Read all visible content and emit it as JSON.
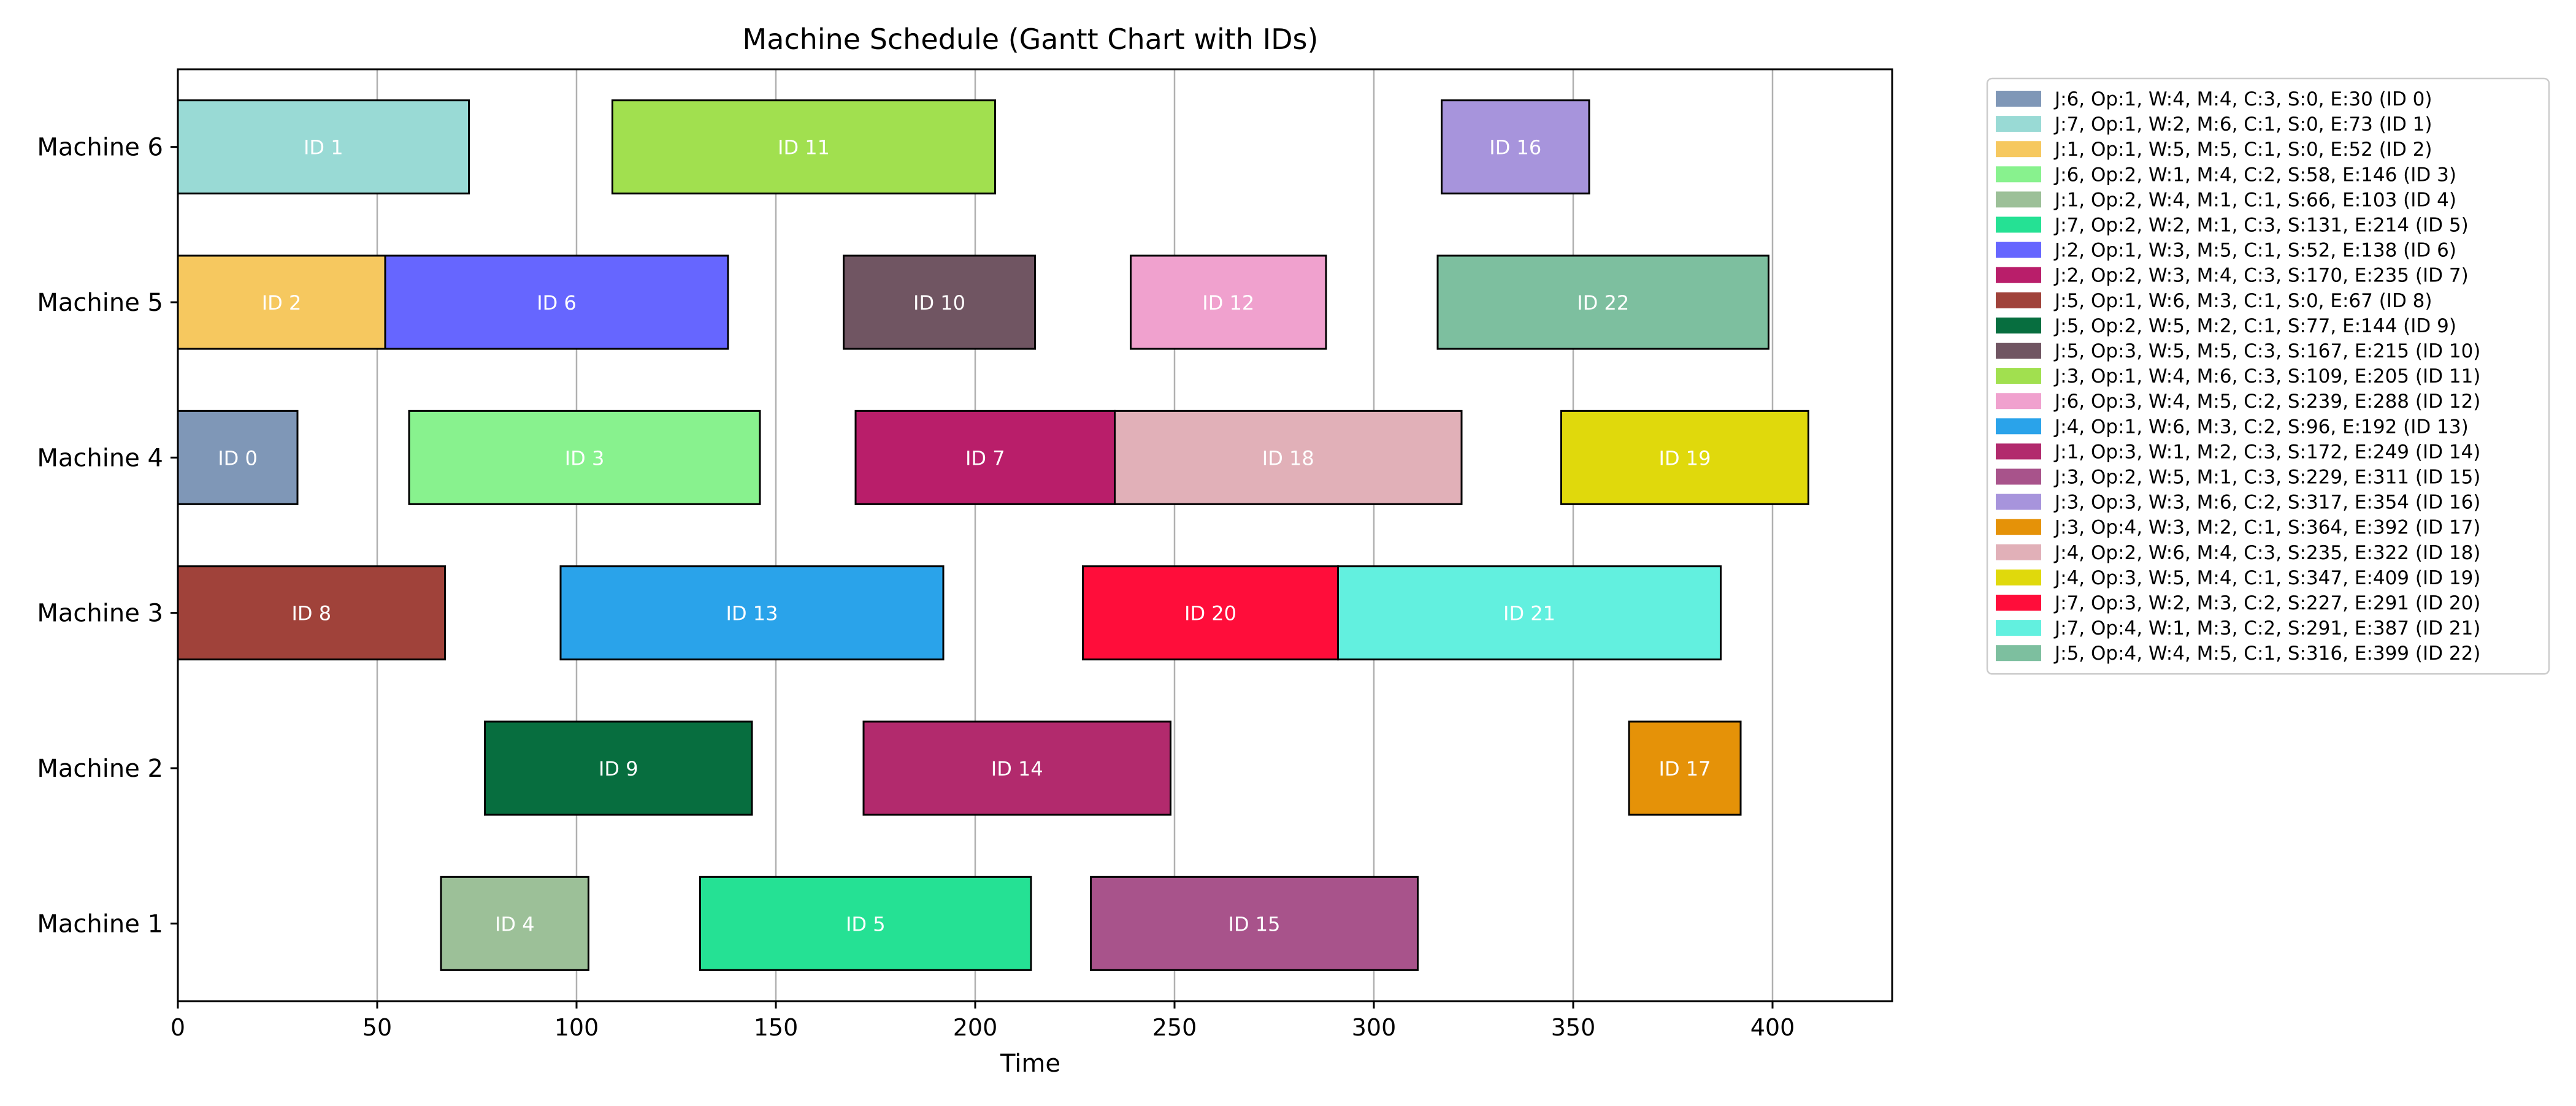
{
  "chart_data": {
    "type": "gantt",
    "title": "Machine Schedule (Gantt Chart with IDs)",
    "xlabel": "Time",
    "ylabel": "",
    "xlim": [
      0,
      430
    ],
    "xticks": [
      0,
      50,
      100,
      150,
      200,
      250,
      300,
      350,
      400
    ],
    "machines": [
      "Machine 1",
      "Machine 2",
      "Machine 3",
      "Machine 4",
      "Machine 5",
      "Machine 6"
    ],
    "grid": "vertical",
    "legend_position": "outside right",
    "tasks": [
      {
        "id": 0,
        "job": 6,
        "op": 1,
        "worker": 4,
        "machine": 4,
        "c": 3,
        "start": 0,
        "end": 30,
        "color": "#7f97b7",
        "bar_label": "ID 0",
        "legend_label": "J:6, Op:1, W:4, M:4, C:3, S:0, E:30 (ID 0)"
      },
      {
        "id": 1,
        "job": 7,
        "op": 1,
        "worker": 2,
        "machine": 6,
        "c": 1,
        "start": 0,
        "end": 73,
        "color": "#99dad5",
        "bar_label": "ID 1",
        "legend_label": "J:7, Op:1, W:2, M:6, C:1, S:0, E:73 (ID 1)"
      },
      {
        "id": 2,
        "job": 1,
        "op": 1,
        "worker": 5,
        "machine": 5,
        "c": 1,
        "start": 0,
        "end": 52,
        "color": "#f6c85f",
        "bar_label": "ID 2",
        "legend_label": "J:1, Op:1, W:5, M:5, C:1, S:0, E:52 (ID 2)"
      },
      {
        "id": 3,
        "job": 6,
        "op": 2,
        "worker": 1,
        "machine": 4,
        "c": 2,
        "start": 58,
        "end": 146,
        "color": "#88f28e",
        "bar_label": "ID 3",
        "legend_label": "J:6, Op:2, W:1, M:4, C:2, S:58, E:146 (ID 3)"
      },
      {
        "id": 4,
        "job": 1,
        "op": 2,
        "worker": 4,
        "machine": 1,
        "c": 1,
        "start": 66,
        "end": 103,
        "color": "#9cc098",
        "bar_label": "ID 4",
        "legend_label": "J:1, Op:2, W:4, M:1, C:1, S:66, E:103 (ID 4)"
      },
      {
        "id": 5,
        "job": 7,
        "op": 2,
        "worker": 2,
        "machine": 1,
        "c": 3,
        "start": 131,
        "end": 214,
        "color": "#25e194",
        "bar_label": "ID 5",
        "legend_label": "J:7, Op:2, W:2, M:1, C:3, S:131, E:214 (ID 5)"
      },
      {
        "id": 6,
        "job": 2,
        "op": 1,
        "worker": 3,
        "machine": 5,
        "c": 1,
        "start": 52,
        "end": 138,
        "color": "#6666ff",
        "bar_label": "ID 6",
        "legend_label": "J:2, Op:1, W:3, M:5, C:1, S:52, E:138 (ID 6)"
      },
      {
        "id": 7,
        "job": 2,
        "op": 2,
        "worker": 3,
        "machine": 4,
        "c": 3,
        "start": 170,
        "end": 235,
        "color": "#b91e6a",
        "bar_label": "ID 7",
        "legend_label": "J:2, Op:2, W:3, M:4, C:3, S:170, E:235 (ID 7)"
      },
      {
        "id": 8,
        "job": 5,
        "op": 1,
        "worker": 6,
        "machine": 3,
        "c": 1,
        "start": 0,
        "end": 67,
        "color": "#a0423a",
        "bar_label": "ID 8",
        "legend_label": "J:5, Op:1, W:6, M:3, C:1, S:0, E:67 (ID 8)"
      },
      {
        "id": 9,
        "job": 5,
        "op": 2,
        "worker": 5,
        "machine": 2,
        "c": 1,
        "start": 77,
        "end": 144,
        "color": "#076e3f",
        "bar_label": "ID 9",
        "legend_label": "J:5, Op:2, W:5, M:2, C:1, S:77, E:144 (ID 9)"
      },
      {
        "id": 10,
        "job": 5,
        "op": 3,
        "worker": 5,
        "machine": 5,
        "c": 3,
        "start": 167,
        "end": 215,
        "color": "#705562",
        "bar_label": "ID 10",
        "legend_label": "J:5, Op:3, W:5, M:5, C:3, S:167, E:215 (ID 10)"
      },
      {
        "id": 11,
        "job": 3,
        "op": 1,
        "worker": 4,
        "machine": 6,
        "c": 3,
        "start": 109,
        "end": 205,
        "color": "#a1e04f",
        "bar_label": "ID 11",
        "legend_label": "J:3, Op:1, W:4, M:6, C:3, S:109, E:205 (ID 11)"
      },
      {
        "id": 12,
        "job": 6,
        "op": 3,
        "worker": 4,
        "machine": 5,
        "c": 2,
        "start": 239,
        "end": 288,
        "color": "#f0a1ce",
        "bar_label": "ID 12",
        "legend_label": "J:6, Op:3, W:4, M:5, C:2, S:239, E:288 (ID 12)"
      },
      {
        "id": 13,
        "job": 4,
        "op": 1,
        "worker": 6,
        "machine": 3,
        "c": 2,
        "start": 96,
        "end": 192,
        "color": "#2aa3ea",
        "bar_label": "ID 13",
        "legend_label": "J:4, Op:1, W:6, M:3, C:2, S:96, E:192 (ID 13)"
      },
      {
        "id": 14,
        "job": 1,
        "op": 3,
        "worker": 1,
        "machine": 2,
        "c": 3,
        "start": 172,
        "end": 249,
        "color": "#b22a6d",
        "bar_label": "ID 14",
        "legend_label": "J:1, Op:3, W:1, M:2, C:3, S:172, E:249 (ID 14)"
      },
      {
        "id": 15,
        "job": 3,
        "op": 2,
        "worker": 5,
        "machine": 1,
        "c": 3,
        "start": 229,
        "end": 311,
        "color": "#a8538b",
        "bar_label": "ID 15",
        "legend_label": "J:3, Op:2, W:5, M:1, C:3, S:229, E:311 (ID 15)"
      },
      {
        "id": 16,
        "job": 3,
        "op": 3,
        "worker": 3,
        "machine": 6,
        "c": 2,
        "start": 317,
        "end": 354,
        "color": "#a794dc",
        "bar_label": "ID 16",
        "legend_label": "J:3, Op:3, W:3, M:6, C:2, S:317, E:354 (ID 16)"
      },
      {
        "id": 17,
        "job": 3,
        "op": 4,
        "worker": 3,
        "machine": 2,
        "c": 1,
        "start": 364,
        "end": 392,
        "color": "#e59208",
        "bar_label": "ID 17",
        "legend_label": "J:3, Op:4, W:3, M:2, C:1, S:364, E:392 (ID 17)"
      },
      {
        "id": 18,
        "job": 4,
        "op": 2,
        "worker": 6,
        "machine": 4,
        "c": 3,
        "start": 235,
        "end": 322,
        "color": "#e1b0b8",
        "bar_label": "ID 18",
        "legend_label": "J:4, Op:2, W:6, M:4, C:3, S:235, E:322 (ID 18)"
      },
      {
        "id": 19,
        "job": 4,
        "op": 3,
        "worker": 5,
        "machine": 4,
        "c": 1,
        "start": 347,
        "end": 409,
        "color": "#e0d90c",
        "bar_label": "ID 19",
        "legend_label": "J:4, Op:3, W:5, M:4, C:1, S:347, E:409 (ID 19)"
      },
      {
        "id": 20,
        "job": 7,
        "op": 3,
        "worker": 2,
        "machine": 3,
        "c": 2,
        "start": 227,
        "end": 291,
        "color": "#ff0d3a",
        "bar_label": "ID 20",
        "legend_label": "J:7, Op:3, W:2, M:3, C:2, S:227, E:291 (ID 20)"
      },
      {
        "id": 21,
        "job": 7,
        "op": 4,
        "worker": 1,
        "machine": 3,
        "c": 2,
        "start": 291,
        "end": 387,
        "color": "#62f0df",
        "bar_label": "ID 21",
        "legend_label": "J:7, Op:4, W:1, M:3, C:2, S:291, E:387 (ID 21)"
      },
      {
        "id": 22,
        "job": 5,
        "op": 4,
        "worker": 4,
        "machine": 5,
        "c": 1,
        "start": 316,
        "end": 399,
        "color": "#7dbf9f",
        "bar_label": "ID 22",
        "legend_label": "J:5, Op:4, W:4, M:5, C:1, S:316, E:399 (ID 22)"
      }
    ]
  }
}
